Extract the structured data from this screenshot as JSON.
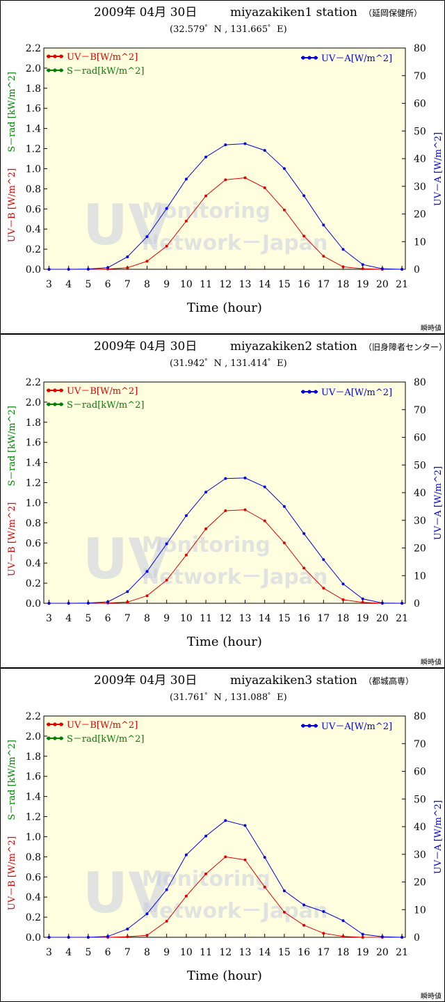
{
  "colors": {
    "uvb": "#e00000",
    "srad": "#008000",
    "uva": "#0000e0",
    "plot_bg": "#ffffe0"
  },
  "chart_data": [
    {
      "type": "line",
      "title": "2009年 04月 30日",
      "station": "miyazakiken1 station",
      "station_sub": "（延岡保健所）",
      "coords": "(32.579゜N , 131.665゜E)",
      "xlabel": "Time (hour)",
      "y_left_label_uvb": "UV－B [W/m^2]",
      "y_left_label_srad": "S－rad [kW/m^2]",
      "y_right_label": "UV－A [W/m^2]",
      "note": "瞬時値",
      "legend": {
        "uvb": "UV－B[W/m^2]",
        "srad": "S－rad[kW/m^2]",
        "uva": "UV－A[W/m^2]"
      },
      "watermark": {
        "big": "UV",
        "line1": "Monitoring",
        "line2": "Network－Japan"
      },
      "x": [
        3,
        4,
        5,
        6,
        7,
        8,
        9,
        10,
        11,
        12,
        13,
        14,
        15,
        16,
        17,
        18,
        19,
        20,
        21
      ],
      "x_ticks": [
        "3",
        "4",
        "5",
        "6",
        "7",
        "8",
        "9",
        "10",
        "11",
        "12",
        "13",
        "14",
        "15",
        "16",
        "17",
        "18",
        "19",
        "20",
        "21"
      ],
      "ylim_left": [
        0,
        2.2
      ],
      "yticks_left": [
        "0.0",
        "0.2",
        "0.4",
        "0.6",
        "0.8",
        "1.0",
        "1.2",
        "1.4",
        "1.6",
        "1.8",
        "2.0",
        "2.2"
      ],
      "ylim_right": [
        0,
        80
      ],
      "yticks_right": [
        "0",
        "10",
        "20",
        "30",
        "40",
        "50",
        "60",
        "70",
        "80"
      ],
      "series": [
        {
          "name": "UV－B[W/m^2]",
          "axis": "left",
          "color": "#e00000",
          "values": [
            0,
            0,
            0,
            0.003,
            0.015,
            0.08,
            0.23,
            0.48,
            0.73,
            0.89,
            0.91,
            0.81,
            0.59,
            0.33,
            0.13,
            0.025,
            0.005,
            0,
            0
          ]
        },
        {
          "name": "UV－A[W/m^2]",
          "axis": "right",
          "color": "#0000e0",
          "values": [
            0,
            0,
            0.1,
            0.6,
            4.5,
            11.8,
            22,
            32.6,
            40.6,
            45,
            45.4,
            43,
            36.4,
            26.6,
            16,
            7.2,
            1.7,
            0.2,
            0
          ]
        }
      ]
    },
    {
      "type": "line",
      "title": "2009年 04月 30日",
      "station": "miyazakiken2 station",
      "station_sub": "（旧身障者センター）",
      "coords": "(31.942゜N , 131.414゜E)",
      "xlabel": "Time (hour)",
      "y_left_label_uvb": "UV－B [W/m^2]",
      "y_left_label_srad": "S－rad [kW/m^2]",
      "y_right_label": "UV－A [W/m^2]",
      "note": "瞬時値",
      "legend": {
        "uvb": "UV－B[W/m^2]",
        "srad": "S－rad[kW/m^2]",
        "uva": "UV－A[W/m^2]"
      },
      "watermark": {
        "big": "UV",
        "line1": "Monitoring",
        "line2": "Network－Japan"
      },
      "x": [
        3,
        4,
        5,
        6,
        7,
        8,
        9,
        10,
        11,
        12,
        13,
        14,
        15,
        16,
        17,
        18,
        19,
        20,
        21
      ],
      "x_ticks": [
        "3",
        "4",
        "5",
        "6",
        "7",
        "8",
        "9",
        "10",
        "11",
        "12",
        "13",
        "14",
        "15",
        "16",
        "17",
        "18",
        "19",
        "20",
        "21"
      ],
      "ylim_left": [
        0,
        2.2
      ],
      "yticks_left": [
        "0.0",
        "0.2",
        "0.4",
        "0.6",
        "0.8",
        "1.0",
        "1.2",
        "1.4",
        "1.6",
        "1.8",
        "2.0",
        "2.2"
      ],
      "ylim_right": [
        0,
        80
      ],
      "yticks_right": [
        "0",
        "10",
        "20",
        "30",
        "40",
        "50",
        "60",
        "70",
        "80"
      ],
      "series": [
        {
          "name": "UV－B[W/m^2]",
          "axis": "left",
          "color": "#e00000",
          "values": [
            0,
            0,
            0,
            0.003,
            0.012,
            0.075,
            0.23,
            0.48,
            0.74,
            0.92,
            0.93,
            0.82,
            0.6,
            0.35,
            0.15,
            0.035,
            0.008,
            0,
            0
          ]
        },
        {
          "name": "UV－A[W/m^2]",
          "axis": "right",
          "color": "#0000e0",
          "values": [
            0,
            0,
            0.1,
            0.5,
            4.2,
            11.5,
            21.5,
            31.7,
            40.2,
            45.1,
            45.3,
            42.1,
            35,
            25.2,
            15.8,
            7,
            1.6,
            0.1,
            0
          ]
        }
      ]
    },
    {
      "type": "line",
      "title": "2009年 04月 30日",
      "station": "miyazakiken3 station",
      "station_sub": "（都城高専）",
      "coords": "(31.761゜N , 131.088゜E)",
      "xlabel": "Time (hour)",
      "y_left_label_uvb": "UV－B [W/m^2]",
      "y_left_label_srad": "S－rad [kW/m^2]",
      "y_right_label": "UV－A [W/m^2]",
      "note": "瞬時値",
      "legend": {
        "uvb": "UV－B[W/m^2]",
        "srad": "S－rad[kW/m^2]",
        "uva": "UV－A[W/m^2]"
      },
      "watermark": {
        "big": "UV",
        "line1": "Monitoring",
        "line2": "Network－Japan"
      },
      "x": [
        3,
        4,
        5,
        6,
        7,
        8,
        9,
        10,
        11,
        12,
        13,
        14,
        15,
        16,
        17,
        18,
        19,
        20,
        21
      ],
      "x_ticks": [
        "3",
        "4",
        "5",
        "6",
        "7",
        "8",
        "9",
        "10",
        "11",
        "12",
        "13",
        "14",
        "15",
        "16",
        "17",
        "18",
        "19",
        "20",
        "21"
      ],
      "ylim_left": [
        0,
        2.2
      ],
      "yticks_left": [
        "0.0",
        "0.2",
        "0.4",
        "0.6",
        "0.8",
        "1.0",
        "1.2",
        "1.4",
        "1.6",
        "1.8",
        "2.0",
        "2.2"
      ],
      "ylim_right": [
        0,
        80
      ],
      "yticks_right": [
        "0",
        "10",
        "20",
        "30",
        "40",
        "50",
        "60",
        "70",
        "80"
      ],
      "series": [
        {
          "name": "UV－B[W/m^2]",
          "axis": "left",
          "color": "#e00000",
          "values": [
            0,
            0,
            0,
            0,
            0.005,
            0.02,
            0.16,
            0.41,
            0.63,
            0.8,
            0.77,
            0.5,
            0.25,
            0.12,
            0.04,
            0.008,
            0,
            0,
            0
          ]
        },
        {
          "name": "UV－A[W/m^2]",
          "axis": "right",
          "color": "#0000e0",
          "values": [
            0,
            0,
            0,
            0.3,
            3,
            8.5,
            17.2,
            29.8,
            36.6,
            42.2,
            40.4,
            28.9,
            16.8,
            11.7,
            9.3,
            6,
            1.1,
            0.2,
            0
          ]
        }
      ]
    }
  ]
}
